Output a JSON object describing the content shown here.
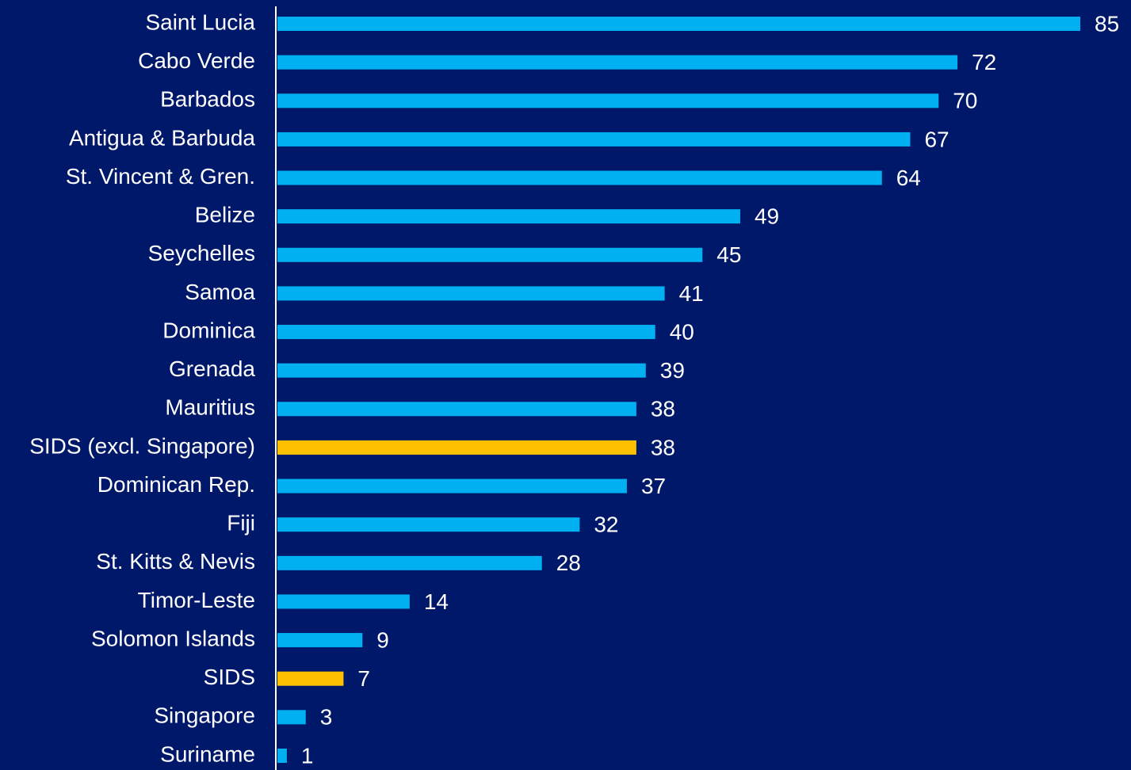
{
  "chart_data": {
    "type": "barh",
    "categories": [
      "Saint Lucia",
      "Cabo Verde",
      "Barbados",
      "Antigua & Barbuda",
      "St. Vincent & Gren.",
      "Belize",
      "Seychelles",
      "Samoa",
      "Dominica",
      "Grenada",
      "Mauritius",
      "SIDS (excl. Singapore)",
      "Dominican Rep.",
      "Fiji",
      "St. Kitts & Nevis",
      "Timor-Leste",
      "Solomon Islands",
      "SIDS",
      "Singapore",
      "Suriname"
    ],
    "values": [
      85,
      72,
      70,
      67,
      64,
      49,
      45,
      41,
      40,
      39,
      38,
      38,
      37,
      32,
      28,
      14,
      9,
      7,
      3,
      1
    ],
    "colors": [
      "#00b0f0",
      "#00b0f0",
      "#00b0f0",
      "#00b0f0",
      "#00b0f0",
      "#00b0f0",
      "#00b0f0",
      "#00b0f0",
      "#00b0f0",
      "#00b0f0",
      "#00b0f0",
      "#ffc000",
      "#00b0f0",
      "#00b0f0",
      "#00b0f0",
      "#00b0f0",
      "#00b0f0",
      "#ffc000",
      "#00b0f0",
      "#00b0f0"
    ]
  }
}
